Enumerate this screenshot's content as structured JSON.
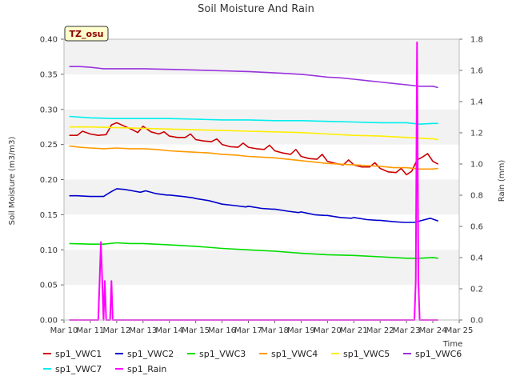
{
  "chart_data": {
    "type": "line",
    "title": "Soil Moisture And Rain",
    "ylabel": "Soil Moisture (m3/m3)",
    "y2label": "Rain (mm)",
    "xlabel": "Time",
    "annotation": "TZ_osu",
    "xlim": [
      "Mar 10",
      "Mar 25"
    ],
    "ylim": [
      0.0,
      0.4
    ],
    "y2lim": [
      0.0,
      1.8
    ],
    "x_ticks": [
      "Mar 10",
      "Mar 11",
      "Mar 12",
      "Mar 13",
      "Mar 14",
      "Mar 15",
      "Mar 16",
      "Mar 17",
      "Mar 18",
      "Mar 19",
      "Mar 20",
      "Mar 21",
      "Mar 22",
      "Mar 23",
      "Mar 24",
      "Mar 25"
    ],
    "y_ticks": [
      "0.00",
      "0.05",
      "0.10",
      "0.15",
      "0.20",
      "0.25",
      "0.30",
      "0.35",
      "0.40"
    ],
    "y2_ticks": [
      "0.0",
      "0.2",
      "0.4",
      "0.6",
      "0.8",
      "1.0",
      "1.2",
      "1.4",
      "1.6",
      "1.8"
    ],
    "legend_position": "bottom",
    "series": [
      {
        "name": "sp1_VWC1",
        "color": "#cc0000",
        "axis": "left",
        "x": [
          10.2,
          10.5,
          10.7,
          11.0,
          11.3,
          11.6,
          11.8,
          12.0,
          12.3,
          12.6,
          12.8,
          13.0,
          13.3,
          13.6,
          13.8,
          14.0,
          14.3,
          14.6,
          14.8,
          15.0,
          15.3,
          15.6,
          15.8,
          16.0,
          16.3,
          16.6,
          16.8,
          17.0,
          17.3,
          17.6,
          17.8,
          18.0,
          18.3,
          18.6,
          18.8,
          19.0,
          19.3,
          19.6,
          19.8,
          20.0,
          20.3,
          20.6,
          20.8,
          21.0,
          21.3,
          21.6,
          21.8,
          22.0,
          22.3,
          22.6,
          22.8,
          23.0,
          23.2,
          23.4,
          23.6,
          23.8,
          24.0,
          24.2
        ],
        "y": [
          0.263,
          0.263,
          0.269,
          0.265,
          0.263,
          0.264,
          0.278,
          0.281,
          0.276,
          0.271,
          0.267,
          0.276,
          0.268,
          0.265,
          0.268,
          0.262,
          0.26,
          0.26,
          0.265,
          0.257,
          0.255,
          0.254,
          0.258,
          0.25,
          0.247,
          0.246,
          0.252,
          0.246,
          0.244,
          0.243,
          0.249,
          0.241,
          0.238,
          0.236,
          0.243,
          0.233,
          0.23,
          0.229,
          0.236,
          0.226,
          0.223,
          0.221,
          0.228,
          0.221,
          0.218,
          0.218,
          0.224,
          0.216,
          0.211,
          0.21,
          0.216,
          0.207,
          0.212,
          0.228,
          0.232,
          0.237,
          0.226,
          0.222
        ]
      },
      {
        "name": "sp1_VWC2",
        "color": "#0000cc",
        "axis": "left",
        "x": [
          10.2,
          10.5,
          11.0,
          11.5,
          11.8,
          12.0,
          12.3,
          12.6,
          12.9,
          13.1,
          13.5,
          13.9,
          14.0,
          14.5,
          14.9,
          15.0,
          15.5,
          15.9,
          16.0,
          16.5,
          16.9,
          17.0,
          17.5,
          17.9,
          18.0,
          18.5,
          18.9,
          19.0,
          19.5,
          19.9,
          20.0,
          20.5,
          20.9,
          21.0,
          21.5,
          21.9,
          22.0,
          22.5,
          22.9,
          23.0,
          23.3,
          23.6,
          23.9,
          24.2
        ],
        "y": [
          0.177,
          0.177,
          0.176,
          0.176,
          0.183,
          0.187,
          0.186,
          0.184,
          0.182,
          0.184,
          0.18,
          0.178,
          0.178,
          0.176,
          0.174,
          0.173,
          0.17,
          0.166,
          0.165,
          0.163,
          0.161,
          0.162,
          0.159,
          0.158,
          0.158,
          0.155,
          0.153,
          0.154,
          0.15,
          0.149,
          0.149,
          0.146,
          0.145,
          0.146,
          0.143,
          0.142,
          0.142,
          0.14,
          0.139,
          0.139,
          0.139,
          0.142,
          0.145,
          0.141
        ]
      },
      {
        "name": "sp1_VWC3",
        "color": "#00dd00",
        "axis": "left",
        "x": [
          10.2,
          11.0,
          11.5,
          12.0,
          12.5,
          13.0,
          14.0,
          15.0,
          16.0,
          17.0,
          18.0,
          19.0,
          20.0,
          21.0,
          22.0,
          23.0,
          23.5,
          24.0,
          24.2
        ],
        "y": [
          0.109,
          0.108,
          0.108,
          0.11,
          0.109,
          0.109,
          0.107,
          0.105,
          0.102,
          0.1,
          0.098,
          0.095,
          0.093,
          0.092,
          0.09,
          0.088,
          0.088,
          0.089,
          0.088
        ]
      },
      {
        "name": "sp1_VWC4",
        "color": "#ff9900",
        "axis": "left",
        "x": [
          10.2,
          10.6,
          11.0,
          11.5,
          12.0,
          12.5,
          13.0,
          13.5,
          14.0,
          14.5,
          15.0,
          15.5,
          16.0,
          16.5,
          17.0,
          17.5,
          18.0,
          18.5,
          19.0,
          19.5,
          20.0,
          20.5,
          21.0,
          21.5,
          22.0,
          22.5,
          23.0,
          23.5,
          24.0,
          24.2
        ],
        "y": [
          0.248,
          0.246,
          0.245,
          0.244,
          0.245,
          0.244,
          0.244,
          0.243,
          0.241,
          0.24,
          0.239,
          0.238,
          0.236,
          0.235,
          0.233,
          0.232,
          0.231,
          0.229,
          0.227,
          0.225,
          0.223,
          0.222,
          0.221,
          0.22,
          0.219,
          0.217,
          0.217,
          0.215,
          0.215,
          0.216
        ]
      },
      {
        "name": "sp1_VWC5",
        "color": "#ffee00",
        "axis": "left",
        "x": [
          10.2,
          11.0,
          12.0,
          13.0,
          14.0,
          15.0,
          16.0,
          17.0,
          18.0,
          19.0,
          20.0,
          21.0,
          22.0,
          23.0,
          24.0,
          24.2
        ],
        "y": [
          0.275,
          0.275,
          0.274,
          0.273,
          0.272,
          0.271,
          0.27,
          0.269,
          0.268,
          0.267,
          0.265,
          0.263,
          0.262,
          0.26,
          0.258,
          0.257
        ]
      },
      {
        "name": "sp1_VWC6",
        "color": "#9933dd",
        "axis": "left",
        "x": [
          10.2,
          10.6,
          11.0,
          11.5,
          12.0,
          12.5,
          13.0,
          14.0,
          15.0,
          16.0,
          17.0,
          18.0,
          19.0,
          19.5,
          20.0,
          20.5,
          21.0,
          21.5,
          22.0,
          22.5,
          23.0,
          23.5,
          24.0,
          24.2
        ],
        "y": [
          0.361,
          0.361,
          0.36,
          0.358,
          0.358,
          0.358,
          0.358,
          0.357,
          0.356,
          0.355,
          0.354,
          0.352,
          0.35,
          0.348,
          0.346,
          0.345,
          0.343,
          0.341,
          0.339,
          0.337,
          0.335,
          0.333,
          0.333,
          0.331
        ]
      },
      {
        "name": "sp1_VWC7",
        "color": "#00eeee",
        "axis": "left",
        "x": [
          10.2,
          11.0,
          12.0,
          13.0,
          14.0,
          15.0,
          16.0,
          17.0,
          18.0,
          19.0,
          20.0,
          21.0,
          22.0,
          23.0,
          23.5,
          24.0,
          24.2
        ],
        "y": [
          0.29,
          0.288,
          0.287,
          0.287,
          0.287,
          0.286,
          0.285,
          0.285,
          0.284,
          0.284,
          0.283,
          0.282,
          0.281,
          0.281,
          0.279,
          0.28,
          0.28
        ]
      },
      {
        "name": "sp1_Rain",
        "color": "#ff00ff",
        "axis": "right",
        "x": [
          10.2,
          11.3,
          11.35,
          11.4,
          11.45,
          11.5,
          11.55,
          11.6,
          11.65,
          11.75,
          11.8,
          11.85,
          23.3,
          23.35,
          23.4,
          23.45,
          23.5,
          23.55,
          23.6,
          24.2
        ],
        "y": [
          0.0,
          0.0,
          0.25,
          0.5,
          0.25,
          0.0,
          0.25,
          0.0,
          0.0,
          0.0,
          0.25,
          0.0,
          0.0,
          0.25,
          1.78,
          0.25,
          0.0,
          0.0,
          0.0,
          0.0
        ]
      }
    ]
  }
}
